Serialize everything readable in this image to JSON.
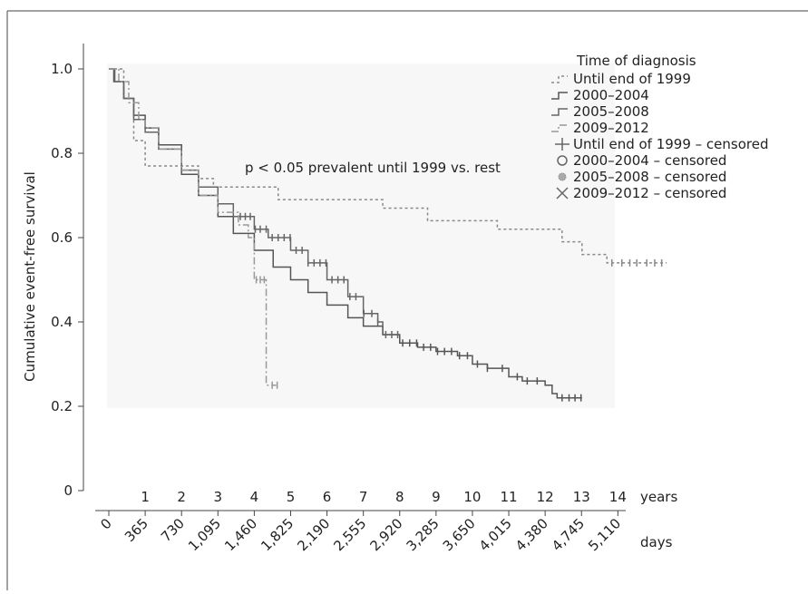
{
  "chart_data": {
    "type": "line",
    "title": "",
    "xlabel": "",
    "ylabel": "Cumulative event-free survival",
    "xlim": [
      0,
      5110
    ],
    "ylim": [
      0,
      1.0
    ],
    "y_ticks": [
      "0",
      "0.2",
      "0.4",
      "0.6",
      "0.8",
      "1.0"
    ],
    "x_ticks_days": [
      "0",
      "365",
      "730",
      "1,095",
      "1,460",
      "1,825",
      "2,190",
      "2,555",
      "2,920",
      "3,285",
      "3,650",
      "4,015",
      "4,380",
      "4,745",
      "5,110"
    ],
    "x_ticks_years": [
      "1",
      "2",
      "3",
      "4",
      "5",
      "6",
      "7",
      "8",
      "9",
      "10",
      "11",
      "12",
      "13",
      "14"
    ],
    "x_unit_days": "days",
    "x_unit_years": "years",
    "annotation": "p < 0.05 prevalent until 1999 vs. rest",
    "legend": {
      "title": "Time of diagnosis",
      "placement": "top-right",
      "entries": [
        "Until end of 1999",
        "2000–2004",
        "2005–2008",
        "2009–2012",
        "Until end of 1999 – censored",
        "2000–2004 – censored",
        "2005–2008 – censored",
        "2009–2012 – censored"
      ]
    },
    "series": [
      {
        "id": "s1999",
        "color": "#888888",
        "dash": "3,3",
        "points": [
          [
            0,
            1.0
          ],
          [
            100,
            1.0
          ],
          [
            150,
            0.93
          ],
          [
            250,
            0.83
          ],
          [
            365,
            0.77
          ],
          [
            850,
            0.77
          ],
          [
            900,
            0.74
          ],
          [
            1050,
            0.72
          ],
          [
            1600,
            0.72
          ],
          [
            1700,
            0.69
          ],
          [
            2650,
            0.69
          ],
          [
            2750,
            0.67
          ],
          [
            3100,
            0.67
          ],
          [
            3200,
            0.64
          ],
          [
            3800,
            0.64
          ],
          [
            3900,
            0.62
          ],
          [
            4450,
            0.62
          ],
          [
            4550,
            0.59
          ],
          [
            4700,
            0.59
          ],
          [
            4750,
            0.56
          ],
          [
            4900,
            0.56
          ],
          [
            5000,
            0.54
          ],
          [
            5600,
            0.54
          ]
        ],
        "censored": [
          5050,
          5150,
          5230,
          5300,
          5400,
          5480,
          5550
        ]
      },
      {
        "id": "s2000",
        "color": "#555555",
        "dash": "",
        "points": [
          [
            0,
            1.0
          ],
          [
            50,
            0.97
          ],
          [
            150,
            0.93
          ],
          [
            250,
            0.89
          ],
          [
            365,
            0.86
          ],
          [
            500,
            0.82
          ],
          [
            730,
            0.75
          ],
          [
            900,
            0.7
          ],
          [
            1095,
            0.65
          ],
          [
            1250,
            0.61
          ],
          [
            1460,
            0.57
          ],
          [
            1650,
            0.53
          ],
          [
            1825,
            0.5
          ],
          [
            2000,
            0.47
          ],
          [
            2190,
            0.44
          ],
          [
            2400,
            0.41
          ],
          [
            2555,
            0.39
          ],
          [
            2750,
            0.37
          ],
          [
            2920,
            0.35
          ],
          [
            3100,
            0.34
          ],
          [
            3285,
            0.33
          ],
          [
            3500,
            0.32
          ],
          [
            3650,
            0.3
          ],
          [
            3800,
            0.29
          ],
          [
            4015,
            0.27
          ],
          [
            4150,
            0.26
          ],
          [
            4380,
            0.25
          ],
          [
            4450,
            0.23
          ],
          [
            4500,
            0.22
          ],
          [
            4750,
            0.22
          ]
        ],
        "censored": [
          2950,
          3020,
          3090,
          3160,
          3230,
          3300,
          3370,
          3440,
          3520,
          3600,
          3700,
          3800,
          3950,
          4100,
          4200,
          4300,
          4550,
          4620,
          4680,
          4740
        ]
      },
      {
        "id": "s2005",
        "color": "#666666",
        "dash": "",
        "points": [
          [
            0,
            1.0
          ],
          [
            60,
            0.97
          ],
          [
            150,
            0.93
          ],
          [
            250,
            0.88
          ],
          [
            365,
            0.85
          ],
          [
            500,
            0.81
          ],
          [
            730,
            0.76
          ],
          [
            900,
            0.72
          ],
          [
            1095,
            0.68
          ],
          [
            1250,
            0.65
          ],
          [
            1460,
            0.62
          ],
          [
            1600,
            0.6
          ],
          [
            1825,
            0.57
          ],
          [
            2000,
            0.54
          ],
          [
            2190,
            0.5
          ],
          [
            2400,
            0.46
          ],
          [
            2555,
            0.42
          ],
          [
            2700,
            0.4
          ],
          [
            2750,
            0.37
          ],
          [
            2920,
            0.37
          ]
        ],
        "censored": [
          1320,
          1370,
          1420,
          1470,
          1520,
          1580,
          1640,
          1700,
          1760,
          1820,
          1880,
          1940,
          2000,
          2060,
          2120,
          2180,
          2240,
          2300,
          2360,
          2420,
          2480,
          2560,
          2640,
          2700,
          2780,
          2840,
          2900
        ]
      },
      {
        "id": "s2009",
        "color": "#999999",
        "dash": "8,3,2,3",
        "points": [
          [
            0,
            1.0
          ],
          [
            100,
            0.97
          ],
          [
            200,
            0.92
          ],
          [
            300,
            0.88
          ],
          [
            365,
            0.86
          ],
          [
            500,
            0.81
          ],
          [
            730,
            0.76
          ],
          [
            900,
            0.7
          ],
          [
            1095,
            0.66
          ],
          [
            1300,
            0.63
          ],
          [
            1400,
            0.6
          ],
          [
            1460,
            0.57
          ],
          [
            1460,
            0.5
          ],
          [
            1580,
            0.5
          ],
          [
            1580,
            0.25
          ],
          [
            1680,
            0.25
          ]
        ],
        "censored": [
          1480,
          1520,
          1560,
          1640,
          1690
        ]
      }
    ]
  }
}
